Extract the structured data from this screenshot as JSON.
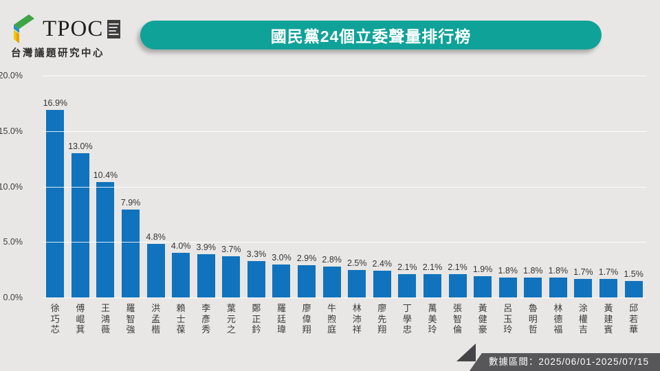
{
  "logo": {
    "brand": "TPOC",
    "subtitle": "台灣議題研究中心",
    "mark_colors": {
      "green": "#3fa447",
      "blue": "#2392c3",
      "teal": "#19a49b",
      "yellow": "#f2c500",
      "orange": "#e8a000"
    }
  },
  "header": {
    "title": "國民黨24個立委聲量排行榜",
    "banner_color": "#0fa298"
  },
  "chart_data": {
    "type": "bar",
    "title": "國民黨24個立委聲量排行榜",
    "categories": [
      "徐巧芯",
      "傅崐萁",
      "王鴻薇",
      "羅智強",
      "洪孟楷",
      "賴士葆",
      "李彥秀",
      "葉元之",
      "鄭正鈐",
      "羅廷瑋",
      "廖偉翔",
      "牛煦庭",
      "林沛祥",
      "廖先翔",
      "丁學忠",
      "萬美玲",
      "張智倫",
      "黃健豪",
      "呂玉玲",
      "魯明哲",
      "林德福",
      "涂權吉",
      "黃建賓",
      "邱若華"
    ],
    "values": [
      16.9,
      13.0,
      10.4,
      7.9,
      4.8,
      4.0,
      3.9,
      3.7,
      3.3,
      3.0,
      2.9,
      2.8,
      2.5,
      2.4,
      2.1,
      2.1,
      2.1,
      1.9,
      1.8,
      1.8,
      1.8,
      1.7,
      1.7,
      1.5
    ],
    "value_labels": [
      "16.9%",
      "13.0%",
      "10.4%",
      "7.9%",
      "4.8%",
      "4.0%",
      "3.9%",
      "3.7%",
      "3.3%",
      "3.0%",
      "2.9%",
      "2.8%",
      "2.5%",
      "2.4%",
      "2.1%",
      "2.1%",
      "2.1%",
      "1.9%",
      "1.8%",
      "1.8%",
      "1.8%",
      "1.7%",
      "1.7%",
      "1.5%"
    ],
    "xlabel": "",
    "ylabel": "",
    "ylim": [
      0,
      20
    ],
    "yticks": [
      "20.0%",
      "15.0%",
      "10.0%",
      "5.0%",
      "0.0%"
    ],
    "grid": true,
    "legend": "none",
    "bar_color": "#1173bd"
  },
  "footer": {
    "data_range_label": "數據區間：2025/06/01-2025/07/15",
    "badge_color": "#57575a",
    "badge_tip_color": "#454548"
  }
}
